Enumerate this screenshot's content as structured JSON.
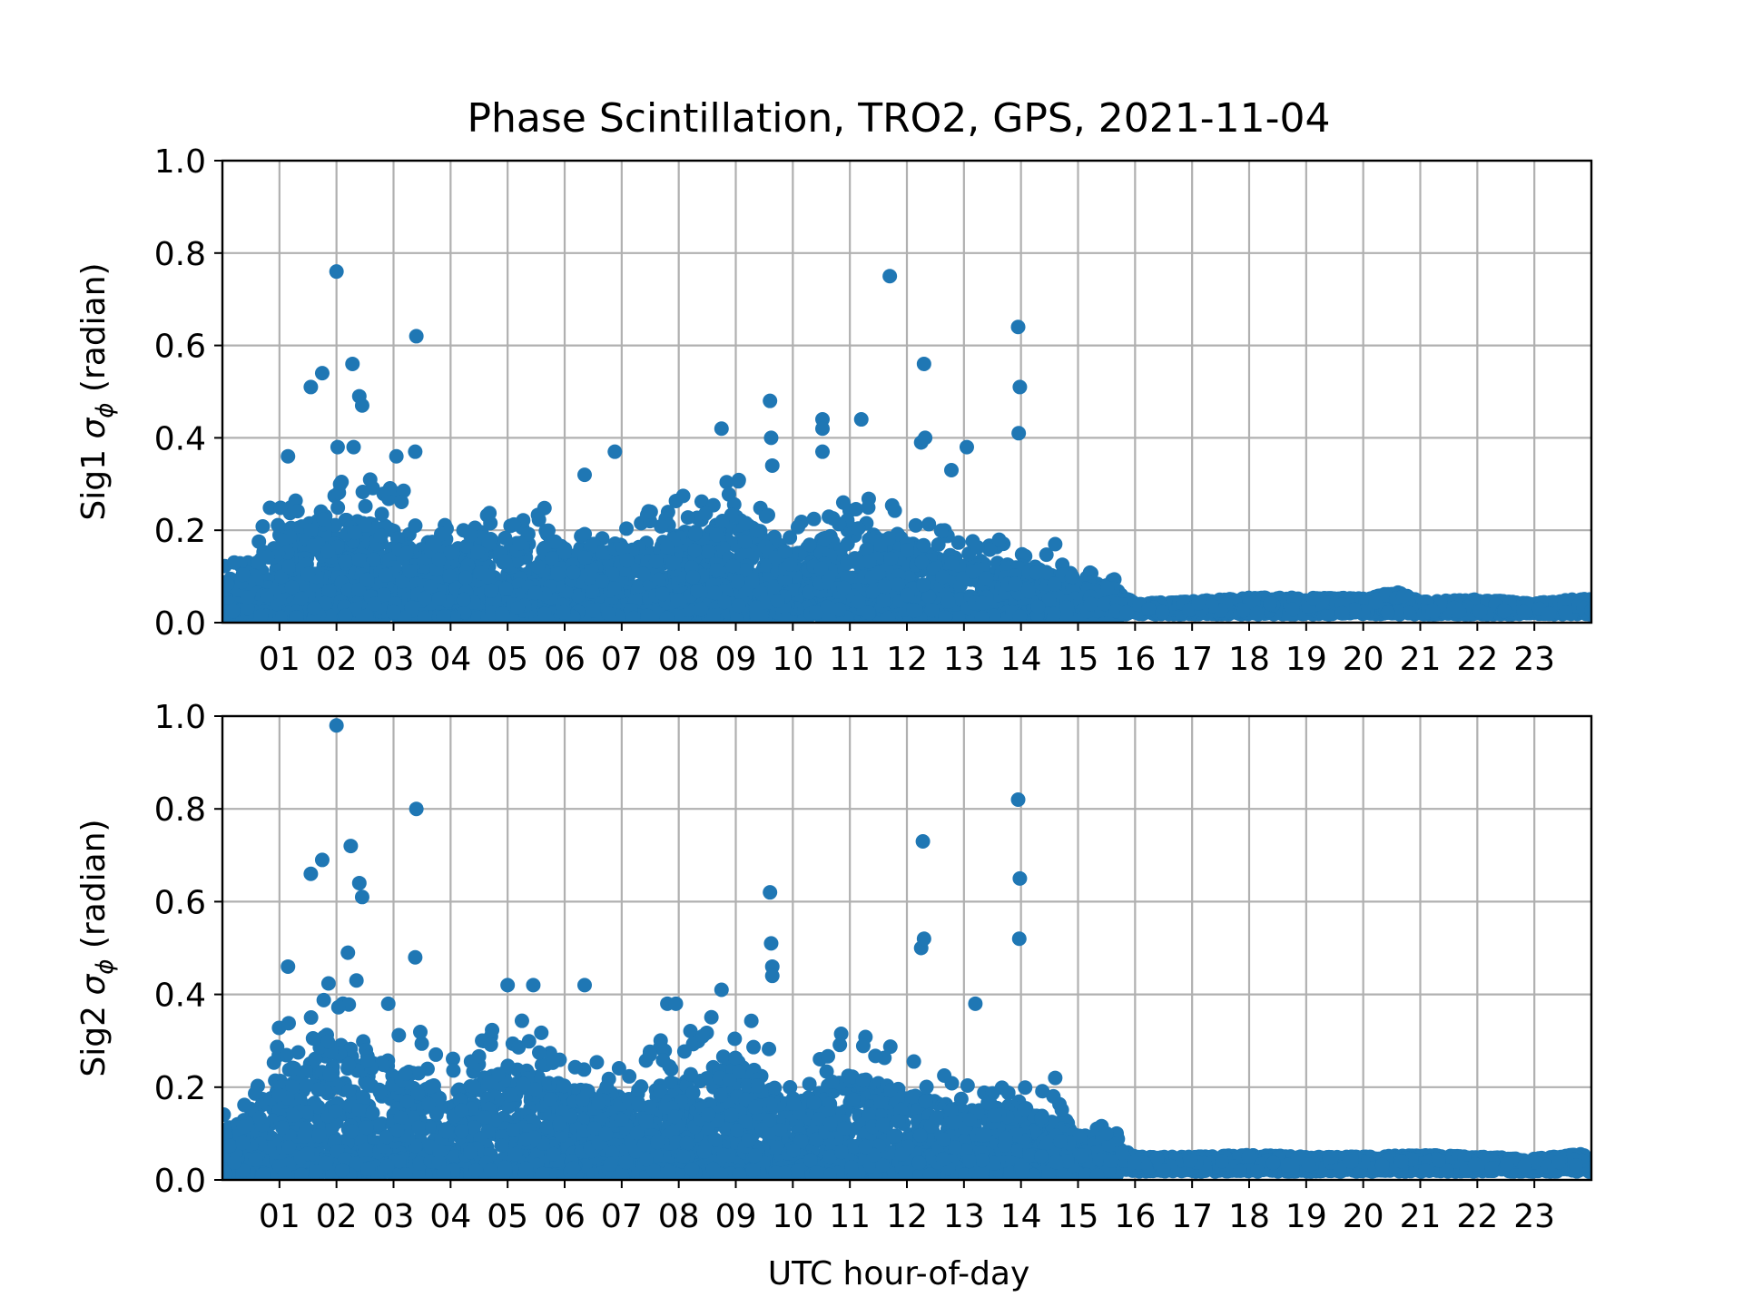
{
  "chart_data": {
    "title": "Phase Scintillation, TRO2, GPS, 2021-11-04",
    "xlabel": "UTC hour-of-day",
    "xlim": [
      0,
      24
    ],
    "x_tick_labels": [
      "01",
      "02",
      "03",
      "04",
      "05",
      "06",
      "07",
      "08",
      "09",
      "10",
      "11",
      "12",
      "13",
      "14",
      "15",
      "16",
      "17",
      "18",
      "19",
      "20",
      "21",
      "22",
      "23"
    ],
    "marker_color": "#1f77b4",
    "grid": true,
    "panels": [
      {
        "type": "scatter",
        "ylabel_prefix": "Sig1 ",
        "ylabel_symbol": "σ",
        "ylabel_sub": "ϕ",
        "ylabel_suffix": " (radian)",
        "ylim": [
          0,
          1.0
        ],
        "y_tick_labels": [
          "0.0",
          "0.2",
          "0.4",
          "0.6",
          "0.8",
          "1.0"
        ],
        "notable_points": [
          {
            "x": 2.0,
            "y": 0.76
          },
          {
            "x": 1.55,
            "y": 0.51
          },
          {
            "x": 1.75,
            "y": 0.54
          },
          {
            "x": 2.28,
            "y": 0.56
          },
          {
            "x": 2.4,
            "y": 0.49
          },
          {
            "x": 2.45,
            "y": 0.47
          },
          {
            "x": 3.4,
            "y": 0.62
          },
          {
            "x": 3.38,
            "y": 0.37
          },
          {
            "x": 3.05,
            "y": 0.36
          },
          {
            "x": 1.15,
            "y": 0.36
          },
          {
            "x": 2.02,
            "y": 0.38
          },
          {
            "x": 2.3,
            "y": 0.38
          },
          {
            "x": 6.35,
            "y": 0.32
          },
          {
            "x": 6.88,
            "y": 0.37
          },
          {
            "x": 8.75,
            "y": 0.42
          },
          {
            "x": 9.6,
            "y": 0.48
          },
          {
            "x": 9.62,
            "y": 0.4
          },
          {
            "x": 9.64,
            "y": 0.34
          },
          {
            "x": 10.52,
            "y": 0.44
          },
          {
            "x": 10.52,
            "y": 0.42
          },
          {
            "x": 10.52,
            "y": 0.37
          },
          {
            "x": 11.2,
            "y": 0.44
          },
          {
            "x": 11.7,
            "y": 0.75
          },
          {
            "x": 12.3,
            "y": 0.56
          },
          {
            "x": 12.25,
            "y": 0.39
          },
          {
            "x": 12.32,
            "y": 0.4
          },
          {
            "x": 13.05,
            "y": 0.38
          },
          {
            "x": 12.78,
            "y": 0.33
          },
          {
            "x": 13.95,
            "y": 0.64
          },
          {
            "x": 13.98,
            "y": 0.51
          },
          {
            "x": 13.96,
            "y": 0.41
          },
          {
            "x": 14.6,
            "y": 0.17
          },
          {
            "x": 14.9,
            "y": 0.1
          }
        ],
        "envelope": [
          {
            "x": 0.0,
            "y": 0.08
          },
          {
            "x": 0.5,
            "y": 0.1
          },
          {
            "x": 1.0,
            "y": 0.2
          },
          {
            "x": 2.0,
            "y": 0.22
          },
          {
            "x": 3.0,
            "y": 0.2
          },
          {
            "x": 4.0,
            "y": 0.15
          },
          {
            "x": 5.0,
            "y": 0.18
          },
          {
            "x": 6.0,
            "y": 0.16
          },
          {
            "x": 7.0,
            "y": 0.15
          },
          {
            "x": 8.0,
            "y": 0.18
          },
          {
            "x": 9.0,
            "y": 0.22
          },
          {
            "x": 10.0,
            "y": 0.14
          },
          {
            "x": 11.0,
            "y": 0.2
          },
          {
            "x": 12.0,
            "y": 0.16
          },
          {
            "x": 13.0,
            "y": 0.12
          },
          {
            "x": 14.0,
            "y": 0.12
          },
          {
            "x": 15.0,
            "y": 0.08
          },
          {
            "x": 15.6,
            "y": 0.07
          },
          {
            "x": 16.0,
            "y": 0.03
          },
          {
            "x": 17.0,
            "y": 0.035
          },
          {
            "x": 18.0,
            "y": 0.045
          },
          {
            "x": 19.0,
            "y": 0.045
          },
          {
            "x": 20.0,
            "y": 0.045
          },
          {
            "x": 20.6,
            "y": 0.06
          },
          {
            "x": 21.0,
            "y": 0.035
          },
          {
            "x": 22.0,
            "y": 0.04
          },
          {
            "x": 23.0,
            "y": 0.03
          },
          {
            "x": 24.0,
            "y": 0.045
          }
        ]
      },
      {
        "type": "scatter",
        "ylabel_prefix": "Sig2 ",
        "ylabel_symbol": "σ",
        "ylabel_sub": "ϕ",
        "ylabel_suffix": " (radian)",
        "ylim": [
          0,
          1.0
        ],
        "y_tick_labels": [
          "0.0",
          "0.2",
          "0.4",
          "0.6",
          "0.8",
          "1.0"
        ],
        "notable_points": [
          {
            "x": 2.0,
            "y": 0.98
          },
          {
            "x": 1.55,
            "y": 0.66
          },
          {
            "x": 1.75,
            "y": 0.69
          },
          {
            "x": 2.25,
            "y": 0.72
          },
          {
            "x": 2.4,
            "y": 0.64
          },
          {
            "x": 2.45,
            "y": 0.61
          },
          {
            "x": 3.4,
            "y": 0.8
          },
          {
            "x": 3.38,
            "y": 0.48
          },
          {
            "x": 1.15,
            "y": 0.46
          },
          {
            "x": 2.2,
            "y": 0.49
          },
          {
            "x": 2.35,
            "y": 0.43
          },
          {
            "x": 5.0,
            "y": 0.42
          },
          {
            "x": 5.45,
            "y": 0.42
          },
          {
            "x": 6.35,
            "y": 0.42
          },
          {
            "x": 8.75,
            "y": 0.41
          },
          {
            "x": 9.6,
            "y": 0.62
          },
          {
            "x": 9.62,
            "y": 0.51
          },
          {
            "x": 9.64,
            "y": 0.46
          },
          {
            "x": 9.64,
            "y": 0.44
          },
          {
            "x": 12.25,
            "y": 0.5
          },
          {
            "x": 12.3,
            "y": 0.52
          },
          {
            "x": 12.28,
            "y": 0.73
          },
          {
            "x": 13.2,
            "y": 0.38
          },
          {
            "x": 13.95,
            "y": 0.82
          },
          {
            "x": 13.98,
            "y": 0.65
          },
          {
            "x": 13.97,
            "y": 0.52
          },
          {
            "x": 14.6,
            "y": 0.22
          },
          {
            "x": 15.5,
            "y": 0.1
          },
          {
            "x": 7.8,
            "y": 0.38
          },
          {
            "x": 7.95,
            "y": 0.38
          }
        ],
        "envelope": [
          {
            "x": 0.0,
            "y": 0.1
          },
          {
            "x": 0.5,
            "y": 0.12
          },
          {
            "x": 1.0,
            "y": 0.22
          },
          {
            "x": 2.0,
            "y": 0.3
          },
          {
            "x": 3.0,
            "y": 0.25
          },
          {
            "x": 4.0,
            "y": 0.18
          },
          {
            "x": 5.0,
            "y": 0.24
          },
          {
            "x": 6.0,
            "y": 0.2
          },
          {
            "x": 7.0,
            "y": 0.16
          },
          {
            "x": 8.0,
            "y": 0.22
          },
          {
            "x": 9.0,
            "y": 0.26
          },
          {
            "x": 10.0,
            "y": 0.16
          },
          {
            "x": 11.0,
            "y": 0.22
          },
          {
            "x": 12.0,
            "y": 0.18
          },
          {
            "x": 13.0,
            "y": 0.14
          },
          {
            "x": 14.0,
            "y": 0.16
          },
          {
            "x": 15.0,
            "y": 0.09
          },
          {
            "x": 15.6,
            "y": 0.08
          },
          {
            "x": 16.0,
            "y": 0.04
          },
          {
            "x": 17.0,
            "y": 0.04
          },
          {
            "x": 18.0,
            "y": 0.045
          },
          {
            "x": 19.0,
            "y": 0.04
          },
          {
            "x": 20.0,
            "y": 0.04
          },
          {
            "x": 21.0,
            "y": 0.045
          },
          {
            "x": 22.0,
            "y": 0.04
          },
          {
            "x": 23.0,
            "y": 0.035
          },
          {
            "x": 24.0,
            "y": 0.05
          }
        ]
      }
    ]
  }
}
